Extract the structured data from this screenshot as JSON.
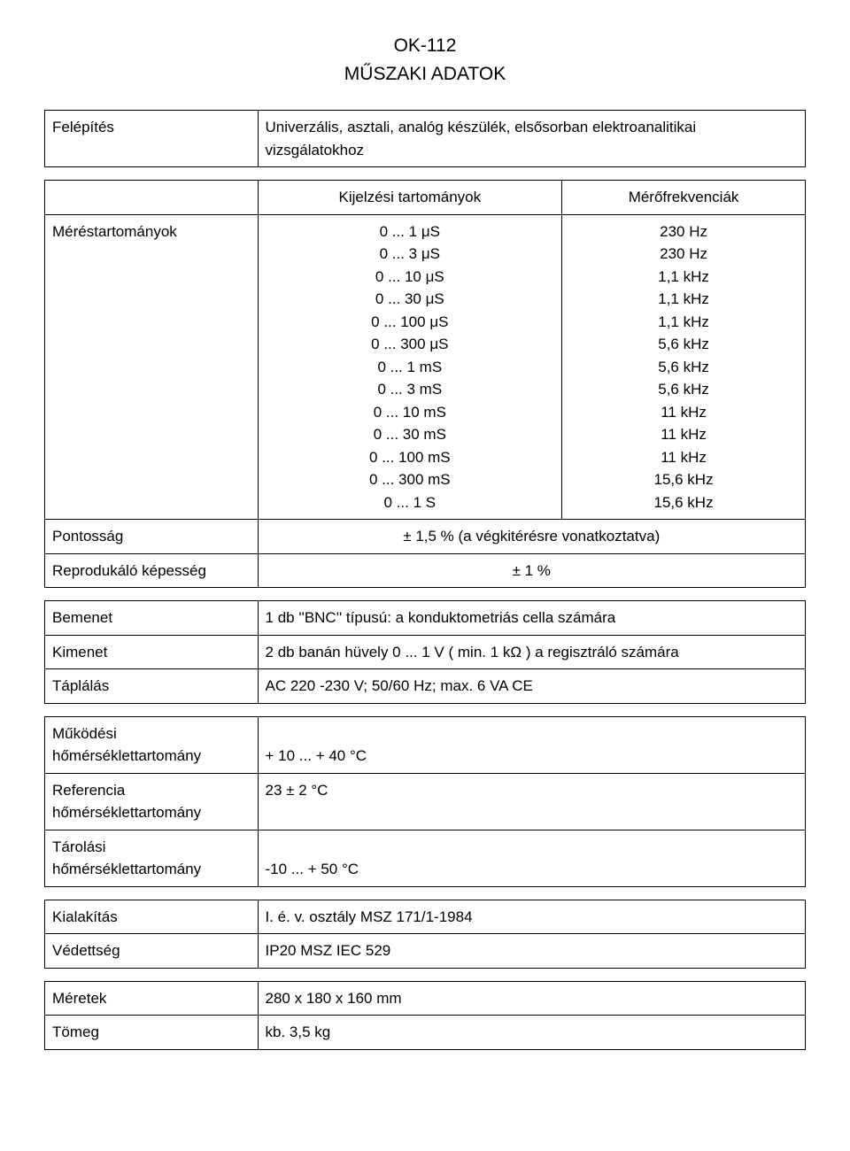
{
  "header": {
    "code": "OK-112",
    "title": "MŰSZAKI ADATOK"
  },
  "table1": {
    "felepites_label": "Felépítés",
    "felepites_value": "Univerzális, asztali, analóg készülék, elsősorban elektroanalitikai vizsgálatokhoz"
  },
  "table2": {
    "col2_header": "Kijelzési tartományok",
    "col3_header": "Mérőfrekvenciák",
    "merestart_label": "Méréstartományok",
    "ranges": [
      "0 ... 1 μS",
      "0 ... 3 μS",
      "0 ... 10 μS",
      "0 ... 30 μS",
      "0 ... 100 μS",
      "0 ... 300 μS",
      "0 ... 1 mS",
      "0 ... 3 mS",
      "0 ... 10 mS",
      "0 ... 30 mS",
      "0 ... 100 mS",
      "0 ... 300 mS",
      "0 ... 1 S"
    ],
    "freqs": [
      "230 Hz",
      "230 Hz",
      "1,1 kHz",
      "1,1 kHz",
      "1,1 kHz",
      "5,6 kHz",
      "5,6 kHz",
      "5,6 kHz",
      "11 kHz",
      "11 kHz",
      "11 kHz",
      "15,6 kHz",
      "15,6 kHz"
    ],
    "pontossag_label": "Pontosság",
    "pontossag_value": "± 1,5 % (a végkitérésre vonatkoztatva)",
    "reprod_label": "Reprodukáló képesség",
    "reprod_value": "± 1 %"
  },
  "table3": {
    "bemenet_label": "Bemenet",
    "bemenet_value": "1 db ''BNC'' típusú: a konduktometriás cella számára",
    "kimenet_label": "Kimenet",
    "kimenet_value": "2 db banán hüvely 0 ... 1 V ( min. 1 kΩ ) a regisztráló számára",
    "taplalas_label": "Táplálás",
    "taplalas_value": "AC 220 -230 V;   50/60 Hz;   max. 6 VA  CE"
  },
  "table4": {
    "mukodesi_label": "Működési hőmérséklettartomány",
    "mukodesi_value": "+ 10 ... + 40  °C",
    "referencia_label": "Referencia hőmérséklettartomány",
    "referencia_value": "23 ± 2  °C",
    "tarolasi_label": "Tárolási hőmérséklettartomány",
    "tarolasi_value": "-10 ... + 50  °C"
  },
  "table5": {
    "kialakitas_label": "Kialakítás",
    "kialakitas_value": "I. é. v. osztály    MSZ 171/1-1984",
    "vedettseg_label": "Védettség",
    "vedettseg_value": "IP20    MSZ IEC 529"
  },
  "table6": {
    "meretek_label": "Méretek",
    "meretek_value": "280 x 180 x 160  mm",
    "tomeg_label": "Tömeg",
    "tomeg_value": "kb. 3,5  kg"
  },
  "style": {
    "body_fontsize": 17,
    "header_fontsize": 21,
    "line_height": 1.5,
    "border_color": "#000000",
    "text_color": "#000000",
    "background_color": "#ffffff"
  }
}
